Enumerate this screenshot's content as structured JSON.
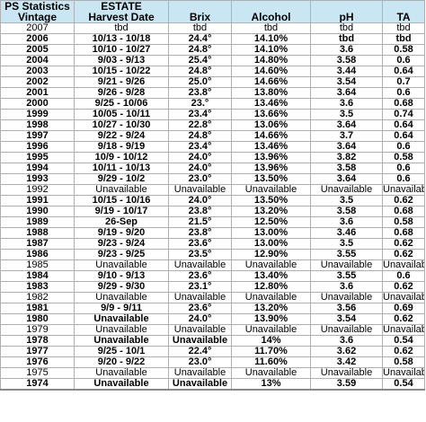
{
  "header": {
    "row1": [
      "PS Statistics",
      "ESTATE",
      "",
      "",
      "",
      ""
    ],
    "row2": [
      "Vintage",
      "Harvest Date",
      "Brix",
      "Alcohol",
      "pH",
      "TA"
    ]
  },
  "rows": [
    {
      "v": "2007",
      "h": "tbd",
      "b": "tbd",
      "a": "tbd",
      "p": "tbd",
      "t": "tbd",
      "bold": false
    },
    {
      "v": "2006",
      "h": "10/13 - 10/18",
      "b": "24.4°",
      "a": "14.10%",
      "p": "tbd",
      "t": "tbd",
      "bold": true
    },
    {
      "v": "2005",
      "h": "10/10 - 10/27",
      "b": "24.8°",
      "a": "14.10%",
      "p": "3.6",
      "t": "0.58",
      "bold": true
    },
    {
      "v": "2004",
      "h": "9/03 - 9/13",
      "b": "25.4°",
      "a": "14.80%",
      "p": "3.58",
      "t": "0.6",
      "bold": true
    },
    {
      "v": "2003",
      "h": "10/15 - 10/22",
      "b": "24.8°",
      "a": "14.60%",
      "p": "3.44",
      "t": "0.64",
      "bold": true
    },
    {
      "v": "2002",
      "h": "9/21 - 9/26",
      "b": "25.0°",
      "a": "14.66%",
      "p": "3.54",
      "t": "0.7",
      "bold": true
    },
    {
      "v": "2001",
      "h": "9/26 - 9/28",
      "b": "23.8°",
      "a": "13.80%",
      "p": "3.64",
      "t": "0.6",
      "bold": true
    },
    {
      "v": "2000",
      "h": "9/25 - 10/06",
      "b": "23.°",
      "a": "13.46%",
      "p": "3.6",
      "t": "0.68",
      "bold": true
    },
    {
      "v": "1999",
      "h": "10/05 - 10/11",
      "b": "23.4°",
      "a": "13.66%",
      "p": "3.5",
      "t": "0.74",
      "bold": true
    },
    {
      "v": "1998",
      "h": "10/27 - 10/30",
      "b": "22.8°",
      "a": "13.06%",
      "p": "3.64",
      "t": "0.64",
      "bold": true
    },
    {
      "v": "1997",
      "h": "9/22 - 9/24",
      "b": "24.8°",
      "a": "14.66%",
      "p": "3.7",
      "t": "0.64",
      "bold": true
    },
    {
      "v": "1996",
      "h": "9/18 - 9/19",
      "b": "23.4°",
      "a": "13.46%",
      "p": "3.64",
      "t": "0.6",
      "bold": true
    },
    {
      "v": "1995",
      "h": "10/9 - 10/12",
      "b": "24.0°",
      "a": "13.96%",
      "p": "3.82",
      "t": "0.58",
      "bold": true
    },
    {
      "v": "1994",
      "h": "10/11 - 10/13",
      "b": "24.0°",
      "a": "13.96%",
      "p": "3.58",
      "t": "0.6",
      "bold": true
    },
    {
      "v": "1993",
      "h": "9/29 - 10/2",
      "b": "23.0°",
      "a": "13.50%",
      "p": "3.64",
      "t": "0.6",
      "bold": true
    },
    {
      "v": "1992",
      "h": "Unavailable",
      "b": "Unavailable",
      "a": "Unavailable",
      "p": "Unavailable",
      "t": "Unavailable",
      "bold": false
    },
    {
      "v": "1991",
      "h": "10/15 - 10/16",
      "b": "24.0°",
      "a": "13.50%",
      "p": "3.5",
      "t": "0.62",
      "bold": true
    },
    {
      "v": "1990",
      "h": "9/19 - 10/17",
      "b": "23.8°",
      "a": "13.20%",
      "p": "3.58",
      "t": "0.68",
      "bold": true
    },
    {
      "v": "1989",
      "h": "26-Sep",
      "b": "21.5°",
      "a": "12.50%",
      "p": "3.6",
      "t": "0.58",
      "bold": true
    },
    {
      "v": "1988",
      "h": "9/19 - 9/20",
      "b": "23.8°",
      "a": "13.00%",
      "p": "3.46",
      "t": "0.68",
      "bold": true
    },
    {
      "v": "1987",
      "h": "9/23 - 9/24",
      "b": "23.6°",
      "a": "13.00%",
      "p": "3.5",
      "t": "0.62",
      "bold": true
    },
    {
      "v": "1986",
      "h": "9/23 - 9/25",
      "b": "23.5°",
      "a": "12.90%",
      "p": "3.55",
      "t": "0.62",
      "bold": true
    },
    {
      "v": "1985",
      "h": "Unavailable",
      "b": "Unavailable",
      "a": "Unavailable",
      "p": "Unavailable",
      "t": "Unavailable",
      "bold": false
    },
    {
      "v": "1984",
      "h": "9/10 - 9/13",
      "b": "23.6°",
      "a": "13.40%",
      "p": "3.55",
      "t": "0.6",
      "bold": true
    },
    {
      "v": "1983",
      "h": "9/29 - 9/30",
      "b": "23.1°",
      "a": "12.80%",
      "p": "3.6",
      "t": "0.62",
      "bold": true
    },
    {
      "v": "1982",
      "h": "Unavailable",
      "b": "Unavailable",
      "a": "Unavailable",
      "p": "Unavailable",
      "t": "Unavailable",
      "bold": false
    },
    {
      "v": "1981",
      "h": "9/9 - 9/11",
      "b": "23.6°",
      "a": "13.20%",
      "p": "3.56",
      "t": "0.69",
      "bold": true
    },
    {
      "v": "1980",
      "h": "Unavailable",
      "b": "24.0°",
      "a": "13.90%",
      "p": "3.54",
      "t": "0.62",
      "bold": true
    },
    {
      "v": "1979",
      "h": "Unavailable",
      "b": "Unavailable",
      "a": "Unavailable",
      "p": "Unavailable",
      "t": "Unavailable",
      "bold": false
    },
    {
      "v": "1978",
      "h": "Unavailable",
      "b": "Unavailable",
      "a": "14%",
      "p": "3.6",
      "t": "0.54",
      "bold": true
    },
    {
      "v": "1977",
      "h": "9/25 - 10/1",
      "b": "22.4°",
      "a": "11.70%",
      "p": "3.62",
      "t": "0.62",
      "bold": true
    },
    {
      "v": "1976",
      "h": "9/20 - 9/22",
      "b": "23.0°",
      "a": "11.60%",
      "p": "3.42",
      "t": "0.58",
      "bold": true
    },
    {
      "v": "1975",
      "h": "Unavailable",
      "b": "Unavailable",
      "a": "Unavailable",
      "p": "Unavailable",
      "t": "Unavailable",
      "bold": false
    },
    {
      "v": "1974",
      "h": "Unavailable",
      "b": "Unavailable",
      "a": "13%",
      "p": "3.59",
      "t": "0.54",
      "bold": true
    }
  ]
}
